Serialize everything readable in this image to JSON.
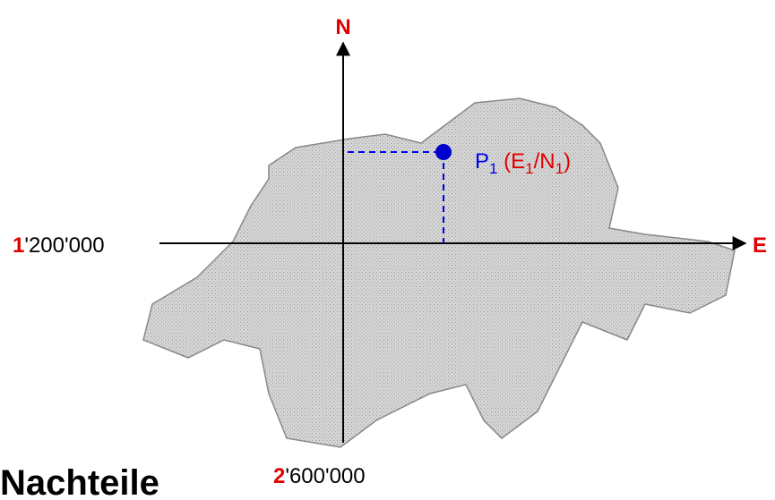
{
  "axes": {
    "north_label": "N",
    "east_label": "E",
    "north_origin": {
      "zone": "1",
      "value": "'200'000"
    },
    "east_origin": {
      "zone": "2",
      "value": "'600'000"
    }
  },
  "point": {
    "name": "P",
    "name_sub": "1",
    "open": " (E",
    "e_sub": "1",
    "sep": "/N",
    "n_sub": "1",
    "close": ")"
  },
  "heading": "Nachteile"
}
